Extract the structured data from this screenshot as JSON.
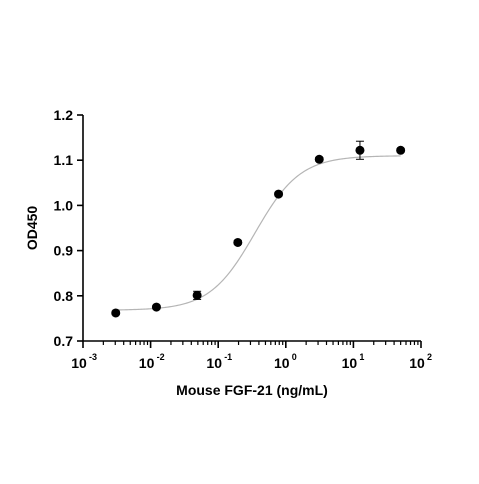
{
  "chart_data": {
    "type": "scatter",
    "title": "",
    "xlabel": "Mouse FGF-21 (ng/mL)",
    "ylabel": "OD450",
    "x_scale": "log10",
    "xlim": [
      0.001,
      100
    ],
    "ylim": [
      0.7,
      1.2
    ],
    "x_ticks": [
      {
        "base": "10",
        "exp": "-3",
        "value": 0.001
      },
      {
        "base": "10",
        "exp": "-2",
        "value": 0.01
      },
      {
        "base": "10",
        "exp": "-1",
        "value": 0.1
      },
      {
        "base": "10",
        "exp": "0",
        "value": 1
      },
      {
        "base": "10",
        "exp": "1",
        "value": 10
      },
      {
        "base": "10",
        "exp": "2",
        "value": 100
      }
    ],
    "y_ticks": [
      {
        "label": "0.7",
        "value": 0.7
      },
      {
        "label": "0.8",
        "value": 0.8
      },
      {
        "label": "0.9",
        "value": 0.9
      },
      {
        "label": "1.0",
        "value": 1.0
      },
      {
        "label": "1.1",
        "value": 1.1
      },
      {
        "label": "1.2",
        "value": 1.2
      }
    ],
    "grid": false,
    "legend": "none",
    "series": [
      {
        "points": [
          {
            "x": 0.00305,
            "y": 0.762,
            "err": 0.004
          },
          {
            "x": 0.0122,
            "y": 0.775,
            "err": 0.004
          },
          {
            "x": 0.0488,
            "y": 0.801,
            "err": 0.009
          },
          {
            "x": 0.195,
            "y": 0.918,
            "err": 0.004
          },
          {
            "x": 0.781,
            "y": 1.025,
            "err": 0.004
          },
          {
            "x": 3.125,
            "y": 1.102,
            "err": 0.004
          },
          {
            "x": 12.5,
            "y": 1.122,
            "err": 0.02
          },
          {
            "x": 50,
            "y": 1.122,
            "err": 0.004
          }
        ]
      }
    ],
    "fit_curve": {
      "model": "4PL",
      "bottom": 0.768,
      "top": 1.11,
      "ec50": 0.35,
      "hill": 1.3,
      "color": "#b5b5b5"
    },
    "marker_color": "#000000",
    "axis_color": "#000000"
  }
}
